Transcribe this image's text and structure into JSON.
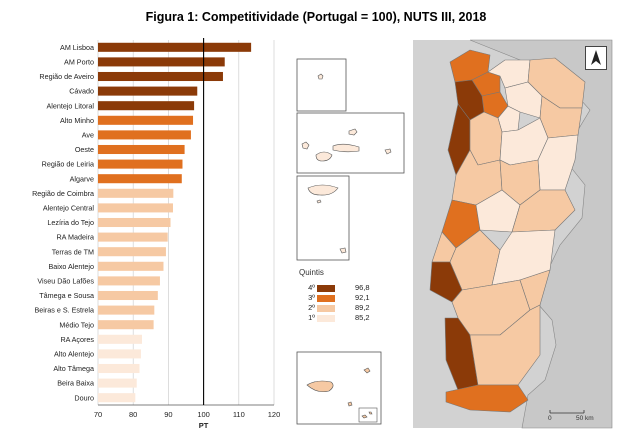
{
  "title": "Figura 1: Competitividade (Portugal = 100), NUTS III, 2018",
  "colors": {
    "q4": "#8b3a08",
    "q3": "#e0701f",
    "q2": "#f6c9a3",
    "q1": "#fce9da",
    "map_bg": "#d2d2d2",
    "spain": "#c8c8c8"
  },
  "chart_data": {
    "type": "bar",
    "orientation": "horizontal",
    "categories": [
      "AM Lisboa",
      "AM Porto",
      "Região de Aveiro",
      "Cávado",
      "Alentejo Litoral",
      "Alto Minho",
      "Ave",
      "Oeste",
      "Região de Leiria",
      "Algarve",
      "Região de Coimbra",
      "Alentejo Central",
      "Lezíria do Tejo",
      "RA Madeira",
      "Terras de TM",
      "Baixo Alentejo",
      "Viseu Dão Lafões",
      "Tâmega e Sousa",
      "Beiras e S. Estrela",
      "Médio Tejo",
      "RA Açores",
      "Alto Alentejo",
      "Alto Tâmega",
      "Beira Baixa",
      "Douro"
    ],
    "values": [
      113.5,
      106.0,
      105.5,
      98.2,
      97.3,
      97.0,
      96.4,
      94.6,
      94.0,
      93.8,
      91.4,
      91.3,
      90.6,
      89.8,
      89.3,
      88.6,
      87.6,
      87.0,
      86.0,
      85.8,
      82.5,
      82.2,
      81.8,
      81.0,
      80.6
    ],
    "quintile": [
      4,
      4,
      4,
      4,
      4,
      3,
      3,
      3,
      3,
      3,
      2,
      2,
      2,
      2,
      2,
      2,
      2,
      2,
      2,
      2,
      1,
      1,
      1,
      1,
      1
    ],
    "xlim": [
      70,
      120
    ],
    "xticks": [
      "70",
      "80",
      "90",
      "100",
      "110",
      "120"
    ],
    "xlabel": "PT",
    "reference_line": 100,
    "grid": true
  },
  "legend": {
    "title": "Quintis",
    "items": [
      {
        "label": "4º",
        "value": "96,8",
        "quintile": 4
      },
      {
        "label": "3º",
        "value": "92,1",
        "quintile": 3
      },
      {
        "label": "2º",
        "value": "89,2",
        "quintile": 2
      },
      {
        "label": "1º",
        "value": "85,2",
        "quintile": 1
      }
    ]
  },
  "scale": {
    "start": "0",
    "end": "50 km"
  },
  "north_arrow": "north-arrow-icon"
}
